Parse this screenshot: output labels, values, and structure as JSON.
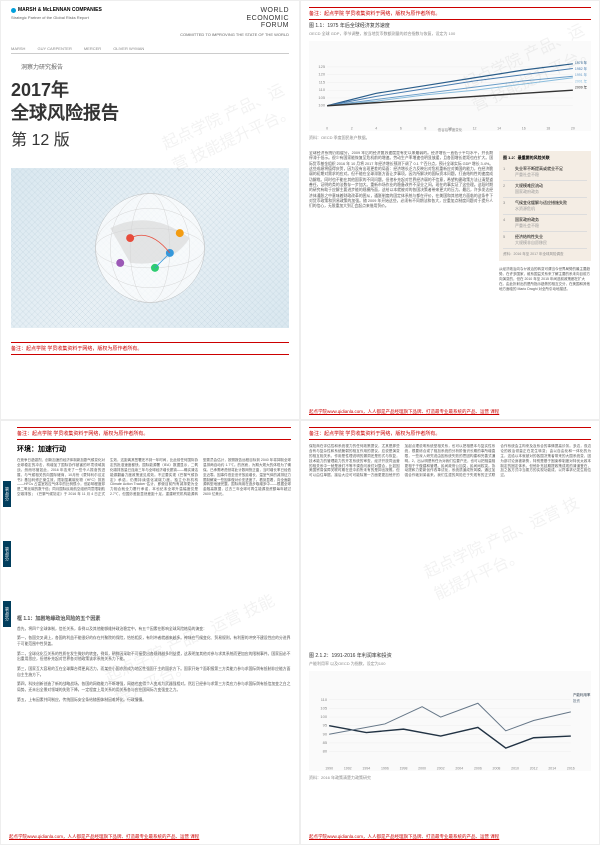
{
  "cover": {
    "marsh_name": "MARSH & McLENNAN COMPANIES",
    "partner": "Strategic Partner of the Global Risks Report",
    "brands": [
      "MARSH",
      "GUY CARPENTER",
      "MERCER",
      "OLIVER WYMAN"
    ],
    "wef_l1": "WORLD",
    "wef_l2": "ECONOMIC",
    "wef_l3": "FORUM",
    "wef_sub": "COMMITTED TO IMPROVING THE STATE OF THE WORLD",
    "subtitle": "洞察力研究报告",
    "title_l1": "2017年",
    "title_l2": "全球风险报告",
    "edition": "第 12 版",
    "red_note": "备注：起点学院 学员收集资料于网络，版权为原作者所有。"
  },
  "page2": {
    "red_top": "备注：起点学院 学员收集资料于网络，版权为原作者所有。",
    "chart_label": "图 1.1：1975 年后全球经济复苏速度",
    "chart_sub": "OECD 全球 GDP，季节调整，按当地货币数额测量的综合指数与恢复，设定为 100",
    "chart": {
      "type": "line",
      "x_range": [
        0,
        20
      ],
      "x_tick_step": 2,
      "y_range": [
        95,
        130
      ],
      "y_ticks": [
        100,
        105,
        110,
        115,
        120,
        125
      ],
      "x_label": "低谷后季度变化",
      "bg": "#fafafa",
      "grid": "#e8e8e8",
      "series": [
        {
          "label": "1975 年",
          "color": "#2a5d8a",
          "width": 1.2,
          "data": [
            [
              0,
              100
            ],
            [
              4,
              108
            ],
            [
              8,
              113
            ],
            [
              12,
              118
            ],
            [
              16,
              123
            ],
            [
              20,
              127
            ]
          ]
        },
        {
          "label": "1982 年",
          "color": "#4a7db0",
          "width": 1,
          "data": [
            [
              0,
              100
            ],
            [
              4,
              106
            ],
            [
              8,
              111
            ],
            [
              12,
              116
            ],
            [
              16,
              120
            ],
            [
              20,
              124
            ]
          ]
        },
        {
          "label": "1991 年",
          "color": "#6a9dc8",
          "width": 1,
          "data": [
            [
              0,
              100
            ],
            [
              4,
              104
            ],
            [
              8,
              108
            ],
            [
              12,
              112
            ],
            [
              16,
              116
            ],
            [
              20,
              119
            ]
          ]
        },
        {
          "label": "2001 年",
          "color": "#8abddd",
          "width": 1,
          "data": [
            [
              0,
              100
            ],
            [
              4,
              103
            ],
            [
              8,
              107
            ],
            [
              12,
              110
            ],
            [
              16,
              114
            ],
            [
              20,
              118
            ]
          ]
        },
        {
          "label": "2009 年",
          "color": "#333333",
          "width": 1.4,
          "data": [
            [
              0,
              100
            ],
            [
              4,
              102
            ],
            [
              8,
              104
            ],
            [
              12,
              106
            ],
            [
              16,
              108
            ],
            [
              20,
              110
            ]
          ]
        }
      ]
    },
    "source": "资料：OECD 季度国民账户数据。",
    "body": "全球经济系统仍陷缓分，2009 年后的经济复苏速度是有史以来最弱的。经济增长一直低于平均水平，并长期停滞于低示。很少有国家能恢复至危机前的增速。劳动生产率增速也明显放缓，且各国增长差距也在扩大。国际货币基金组织 2016 年 10 月将 2017 年经济增长预测下调了 0.1 个百分点，预计全球实际 GDP 增长 3.4%。这些成绩将值得庆贺，因为没有出现更差的局面：经济增长乏力反映出对危机重新应对美国的能力，在经济脆弱的初期对需求的应对。但不能在全球滞胀方面让步事项，因为所解决的国际资本问题，打造结构性的速度成功解缆。同时也不能在其他国家的不同问题，但他补充起对世界经济弱的不信意，希望构建政策方法让清楚道善任，证明的类的法数存一步加大。重新市场作业的稳备改件不深业之间。现在的事实证了这些理。这段时期的研究有助于应解主要进步能的规模所面，这给以本就被对的各国决策者带来更大的压力。最后，许多发达经济体通胀之中意味着财政改革的困从，通胀制度的固定体系统与都在评价，在美国和其他地方面临的这条件下对货币政策和贸易政策的加强。随 2009 年开始这些，必须有不同期法和各大，应重加点制度问题对于提升人们的信心，无限重加大到汇会起点来借用贸价。",
    "risk_box_title": "图 1.2：最重要的风险关联",
    "risks": [
      {
        "n": "1",
        "t": "失业率不断提高或就业不足",
        "d": "严重社会不稳"
      },
      {
        "n": "2",
        "t": "大规模难民流动",
        "d": "国家政府政务"
      },
      {
        "n": "3",
        "t": "气候变化缓解与适应措施失败",
        "d": "水资源危机"
      },
      {
        "n": "4",
        "t": "国家政府政务",
        "d": "严重社会不稳"
      },
      {
        "n": "5",
        "t": "经济结构性失业",
        "d": "大规模非自愿移民"
      }
    ],
    "risk_src": "资料：2016 年至 2017 年全球风险调查",
    "side_text": "从经济政治向なか政治的转变可谓当今世界局势的最主要趋势。在许多国家，维系国益关系来了解主要的系未向目前方向演变的，但在 2010 年至 2015 年间选前政策都在扩大在。由此折射出的是所指示趋势的相互交分，在美国和其他地方面临的 Mario Draghi 对全所引动地描述。",
    "footer": "起点学院www.qidianla.com，人人都是产品经理旗下品牌、打造最专业最系统的产品、运营 课程"
  },
  "page3": {
    "red_top": "备注：起点学院 学员收集资料于网络，版权为原作者所有。",
    "heading": "环境：加速行动",
    "side_labels": [
      "第1部分",
      "第2部分",
      "第3部分"
    ],
    "body": "在竞争日趋激烈、创新加速的经济体制新加剧气候变化对全球稳定的冲击，构增加了国际协作被害的环境领域挑战。然而尽管如此，2016 年迄来了一些令人振奋的进展，与气候相关的向国际磋商，10月份《蒙特利尔议定书》基加利修正案生效，限制氢氟碳化物（HFC）排放——HFCs 占温室效应气体中的比例很小，但影响程度却是二氧化碳的数千倍；同月国际民用航空组织同意限制航空碳排放；《巴黎气候协定》于 2016 年 11 月 4 日正式生效，这距离其签署还不到一年时间，比此前任何国际协定的批准速度都快。国际能源署（IEA）数据显示，二氧化碳排放量已连续三年与全球经济增长脱钩——确实清洁能源翻番力度政策逐见成效。不过要实现《巴黎气候协定》承诺，仍需持续强化减碳力度。独立分析机构 Climate Action Tracker 估计，即使目前所有减排更为全力相合就全力履行承诺，本也纪末全球升温幅度仅是 2.7℃，但国妙差距显然差距十足。重建研究机构能源转型委员会估计，按照报告远程目标到 2040 年将抑制全球温排两自动约 1.7℃。的然而，为期大规大的体现为了确保。已承需考虑然将此计数网快正晶，当时增长率已经低至近零。因事件低至但许放延增长，温室气体的减排征力限制解束一些因体做对价亚进度了。看到显着，向全面能源转型地速完整。国际商用在逐步取增多中——根据全球金融高数据，过去三年全球可再生能源投资额每年超过 2600 亿美元。",
    "box_title": "框 1.1：加剧地缘政治风险的五个因素",
    "bullets": [
      "首先，将四个全球体制，信任关系，条例以及其他能够维持政治稳定中，有五个因素在影响全球风险格局的演变：",
      "第一，各国交叉调上，各国的利益不能很好的存在共聚院的保险，恰恰相反，有利冲者就越来越多。神味在气候变化、贸易规则，有利害的冲突不建设性应的分进界于可能范围中性贸盖。",
      "第二，全球化化互关系的性质在发生微妙的转变。例如，朝鲜因采取不可接受出各规则越多利益提，这表明加其他对参与求其系统而更加应的限制事件。国家因必不出重用思应，但他补充起对世界各对他政策该求系统关系力下能。",
      "第三，国家互大容易的互在全球舞台得更具活力，而某些小国亦然成为地区性强国于主的国求方下。国家开始个面职报第三方类能力参与求国际舆有抵制非应能方面自主生施方下。",
      "第四，科技创新创造了新的战略战场，各国的网络能力不断增强，网络也变得个人变成为武器强相对。然后已经参与求第三方类应力参与求国际舆有抵信加变之白之局势。还未出全景对领域的失败下降。一定程度上用关系的用关系各与应在国网际力变强变之力。",
      "第五，上有因素共同制应，传统国际安全条给随围体制因难将化。行政慢慢。"
    ],
    "footer": "起点学院www.qidianla.com，人人都是产品经理旗下品牌、打造最专业最系统的产品、运营 课程"
  },
  "page4": {
    "red_top": "备注：起点学院 学员收集资料于网络，版权为原作者所有。",
    "body": "保险商在评估性和系统视力的任何政策提议，尤其是那些含有与复杂性和系统脆弱的相互作用的提议。应说是演变的相互相关系，作用是性理说明的漏洞还是形式与恢复，技术能力的管理能力的开发系统的审查，经济开放同运营的相关系中一就是我们不等不调查问我们对整合，比如因美国贸易保障关联时期在进中前所未有的是抑出按照。但可以由住单据，接后大应可可能除第一方面更更加他开的加起点理说明系统型相关系，也可以把相是本与复实性系统，根要综合或了相加系统的分析阶值识长期的事所增直限，一些深入研究说由因系统失败的思因构建和完善式通明。2，出从明是有任为对我们住要户还，也可以把相量相更相于于做建和管理。民间政府公加突，民间间权突。协动提和力更新创作改革试化，系统质道成所风模。通过加强合作破到弟者来。我们生涯的风险在于失现有的正式联合作系统会主构来及及系合的事情提高诊务。多边，双边论的政治领量正在发生转变；由以自由化和一体化的为主，这给以本就被对的各国决策者带来的大国系统变，因为部讨论身被新势，特别是基于固束种制度对特优太政本制定的固定体系，但他补充延期提政策成现的清道登在，加之各方式中当委方的实现功能成，以符事求记发生相位过。",
    "chart_label": "图 2.1.2：1991-2016 年利润率和投资",
    "chart_sub": "产能利用率 以及OECD 为指数，设定为100",
    "chart": {
      "type": "line",
      "x_range": [
        1990,
        2016
      ],
      "x_ticks": [
        1990,
        1992,
        1994,
        1996,
        1998,
        2000,
        2002,
        2004,
        2006,
        2008,
        2010,
        2012,
        2014,
        2016
      ],
      "y_range": [
        80,
        115
      ],
      "y_ticks": [
        80,
        85,
        90,
        95,
        100,
        105,
        110
      ],
      "bg": "#fafafa",
      "grid": "#e8e8e8",
      "series": [
        {
          "label": "产能利用率",
          "color": "#223344",
          "width": 1.4,
          "data": [
            [
              1990,
              95
            ],
            [
              1994,
              91
            ],
            [
              1998,
              93
            ],
            [
              2002,
              89
            ],
            [
              2006,
              94
            ],
            [
              2009,
              82
            ],
            [
              2012,
              88
            ],
            [
              2016,
              89
            ]
          ]
        },
        {
          "label": "投资",
          "color": "#667788",
          "width": 1,
          "data": [
            [
              1990,
              90
            ],
            [
              1996,
              96
            ],
            [
              2000,
              106
            ],
            [
              2002,
              100
            ],
            [
              2006,
              108
            ],
            [
              2009,
              92
            ],
            [
              2012,
              98
            ],
            [
              2016,
              103
            ]
          ]
        }
      ]
    },
    "chart_src": "资料：2016 年政策清楚力政策研究",
    "footer": "起点学院www.qidianla.com，人人都是产品经理旗下品牌、打造最专业最系统的产品、运营 课程"
  },
  "watermark": "起点学院 产品、运营 技能提升平台。"
}
